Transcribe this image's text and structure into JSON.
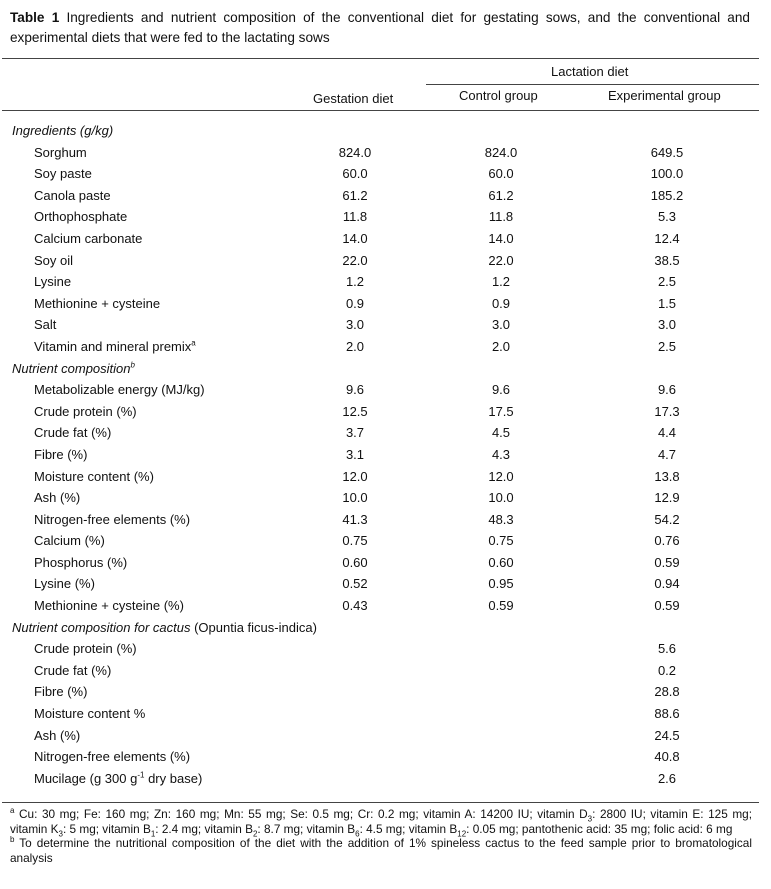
{
  "caption": {
    "label": "Table 1",
    "text": " Ingredients and nutrient composition of the conventional diet for gestating sows, and the conventional and experimental diets that were fed to the lactating sows"
  },
  "header": {
    "group": "Lactation diet",
    "col1": "Gestation diet",
    "col2": "Control group",
    "col3": "Experimental group"
  },
  "rows": [
    {
      "label": "Ingredients (g/kg)"
    },
    {
      "label": "Sorghum",
      "v1": "824.0",
      "v2": "824.0",
      "v3": "649.5"
    },
    {
      "label": "Soy paste",
      "v1": "60.0",
      "v2": "60.0",
      "v3": "100.0"
    },
    {
      "label": "Canola paste",
      "v1": "61.2",
      "v2": "61.2",
      "v3": "185.2"
    },
    {
      "label": "Orthophosphate",
      "v1": "11.8",
      "v2": "11.8",
      "v3": "5.3"
    },
    {
      "label": "Calcium carbonate",
      "v1": "14.0",
      "v2": "14.0",
      "v3": "12.4"
    },
    {
      "label": "Soy oil",
      "v1": "22.0",
      "v2": "22.0",
      "v3": "38.5"
    },
    {
      "label": "Lysine",
      "v1": "1.2",
      "v2": "1.2",
      "v3": "2.5"
    },
    {
      "label": "Methionine + cysteine",
      "v1": "0.9",
      "v2": "0.9",
      "v3": "1.5"
    },
    {
      "label": "Salt",
      "v1": "3.0",
      "v2": "3.0",
      "v3": "3.0"
    },
    {
      "label": "Vitamin and mineral premix",
      "sup": "a",
      "v1": "2.0",
      "v2": "2.0",
      "v3": "2.5"
    },
    {
      "label": "Nutrient composition",
      "sup": "b"
    },
    {
      "label": "Metabolizable energy (MJ/kg)",
      "v1": "9.6",
      "v2": "9.6",
      "v3": "9.6"
    },
    {
      "label": "Crude protein (%)",
      "v1": "12.5",
      "v2": "17.5",
      "v3": "17.3"
    },
    {
      "label": "Crude fat (%)",
      "v1": "3.7",
      "v2": "4.5",
      "v3": "4.4"
    },
    {
      "label": "Fibre (%)",
      "v1": "3.1",
      "v2": "4.3",
      "v3": "4.7"
    },
    {
      "label": "Moisture content (%)",
      "v1": "12.0",
      "v2": "12.0",
      "v3": "13.8"
    },
    {
      "label": "Ash (%)",
      "v1": "10.0",
      "v2": "10.0",
      "v3": "12.9"
    },
    {
      "label": "Nitrogen-free elements (%)",
      "v1": "41.3",
      "v2": "48.3",
      "v3": "54.2"
    },
    {
      "label": "Calcium (%)",
      "v1": "0.75",
      "v2": "0.75",
      "v3": "0.76"
    },
    {
      "label": "Phosphorus (%)",
      "v1": "0.60",
      "v2": "0.60",
      "v3": "0.59"
    },
    {
      "label": "Lysine (%)",
      "v1": "0.52",
      "v2": "0.95",
      "v3": "0.94"
    },
    {
      "label": "Methionine + cysteine (%)",
      "v1": "0.43",
      "v2": "0.59",
      "v3": "0.59"
    },
    {
      "label": "Nutrient composition for cactus",
      "label_suffix": " (Opuntia ficus-indica)"
    },
    {
      "label": "Crude protein (%)",
      "v3": "5.6"
    },
    {
      "label": "Crude fat (%)",
      "v3": "0.2"
    },
    {
      "label": "Fibre (%)",
      "v3": "28.8"
    },
    {
      "label": "Moisture content %",
      "v3": "88.6"
    },
    {
      "label": "Ash (%)",
      "v3": "24.5"
    },
    {
      "label": "Nitrogen-free elements (%)",
      "v3": "40.8"
    },
    {
      "label": "Mucilage (g 300 g",
      "sup": "-1",
      "label_after": " dry base)",
      "v3": "2.6"
    }
  ],
  "footnotes": {
    "a_mark": "a",
    "a_html": " Cu: 30 mg; Fe: 160 mg; Zn: 160 mg; Mn: 55 mg; Se: 0.5 mg; Cr: 0.2 mg; vitamin A: 14200 IU; vitamin D<sub>3</sub>: 2800 IU; vitamin E: 125 mg; vitamin K<sub>3</sub>: 5 mg; vitamin B<sub>1</sub>: 2.4 mg; vitamin B<sub>2</sub>: 8.7 mg; vitamin B<sub>6</sub>: 4.5 mg; vitamin B<sub>12</sub>: 0.05 mg; pantothenic acid: 35 mg; folic acid: 6 mg",
    "b_mark": "b",
    "b_text": " To determine the nutritional composition of the diet with the addition of 1% spineless cactus to the feed sample prior to bromatological analysis"
  }
}
